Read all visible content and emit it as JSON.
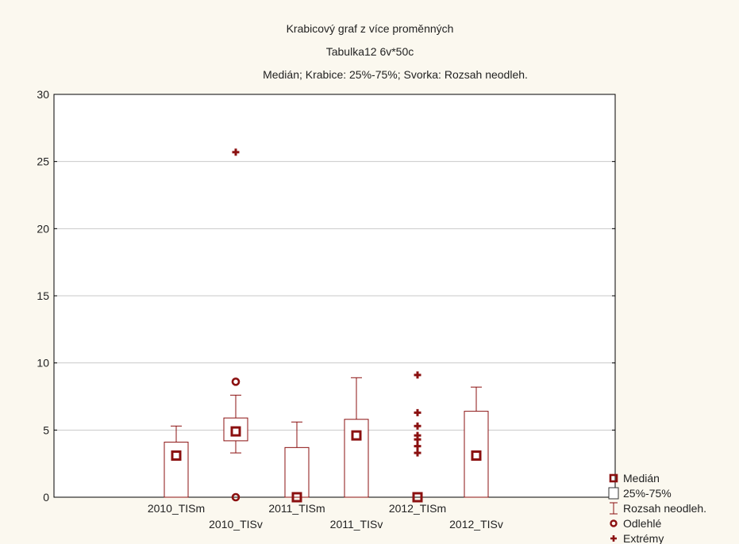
{
  "chart_data": {
    "type": "boxplot",
    "title": "Krabicový graf z více proměnných",
    "subtitle": "Tabulka12 6v*50c",
    "subtitle2": "Medián; Krabice: 25%-75%; Svorka: Rozsah neodleh.",
    "ylim": [
      0,
      30
    ],
    "yticks": [
      0,
      5,
      10,
      15,
      20,
      25,
      30
    ],
    "grid": true,
    "legend_position": "bottom-right",
    "categories": [
      "2010_TISm",
      "2010_TISv",
      "2011_TISm",
      "2011_TISv",
      "2012_TISm",
      "2012_TISv"
    ],
    "boxes": [
      {
        "name": "2010_TISm",
        "median": 3.1,
        "q1": 0,
        "q3": 4.1,
        "whisker_low": 0,
        "whisker_high": 5.3,
        "outliers": [],
        "extremes": []
      },
      {
        "name": "2010_TISv",
        "median": 4.9,
        "q1": 4.2,
        "q3": 5.9,
        "whisker_low": 3.3,
        "whisker_high": 7.6,
        "outliers": [
          8.6,
          0
        ],
        "extremes": [
          25.7
        ]
      },
      {
        "name": "2011_TISm",
        "median": 0,
        "q1": 0,
        "q3": 3.7,
        "whisker_low": 0,
        "whisker_high": 5.6,
        "outliers": [],
        "extremes": []
      },
      {
        "name": "2011_TISv",
        "median": 4.6,
        "q1": 0,
        "q3": 5.8,
        "whisker_low": 0,
        "whisker_high": 8.9,
        "outliers": [],
        "extremes": []
      },
      {
        "name": "2012_TISm",
        "median": 0,
        "q1": 0,
        "q3": 0,
        "whisker_low": 0,
        "whisker_high": 0,
        "outliers": [],
        "extremes": [
          9.1,
          6.3,
          5.3,
          4.6,
          4.3,
          3.8,
          3.3
        ]
      },
      {
        "name": "2012_TISv",
        "median": 3.1,
        "q1": 0,
        "q3": 6.4,
        "whisker_low": 0,
        "whisker_high": 8.2,
        "outliers": [],
        "extremes": []
      }
    ],
    "legend": [
      {
        "key": "median",
        "label": "Medián"
      },
      {
        "key": "box",
        "label": "25%-75%"
      },
      {
        "key": "whisker",
        "label": "Rozsah neodleh."
      },
      {
        "key": "outlier",
        "label": "Odlehlé"
      },
      {
        "key": "extreme",
        "label": "Extrémy"
      }
    ],
    "colors": {
      "marker": "#8b1010",
      "box": "#8b1010",
      "background": "#fbf8ef",
      "plot_bg": "#ffffff",
      "grid": "#c9c9c9",
      "axis": "#000000"
    }
  }
}
